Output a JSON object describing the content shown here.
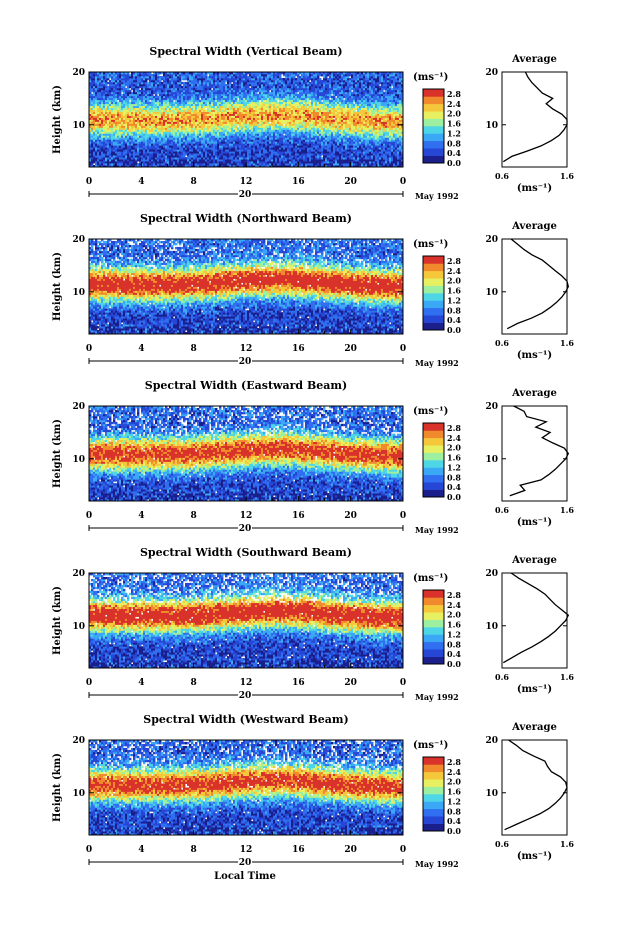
{
  "figure": {
    "xlabel": "Local Time",
    "ylabel": "Height (km)",
    "unit": "(ms⁻¹)",
    "date_label": "May 1992",
    "day_label": "20",
    "avg_title": "Average",
    "colorbar_ticks": [
      "2.8",
      "2.4",
      "2.0",
      "1.6",
      "1.2",
      "0.8",
      "0.4",
      "0.0"
    ],
    "colors": [
      "#1a1f8c",
      "#2646d6",
      "#2f6ff0",
      "#3aa8f5",
      "#4fd6e6",
      "#9cf0a0",
      "#e6f060",
      "#f5c83c",
      "#f08a2c",
      "#d8322a"
    ]
  },
  "chart_data": [
    {
      "type": "heatmap",
      "title": "Spectral Width (Vertical Beam)",
      "xlabel": "",
      "ylabel": "Height (km)",
      "x_ticks": [
        "0",
        "4",
        "8",
        "12",
        "16",
        "20",
        "0"
      ],
      "xlim": [
        0,
        24
      ],
      "y_ticks": [
        "20",
        "10"
      ],
      "ylim": [
        2,
        20
      ],
      "colorbar": {
        "label": "(ms⁻¹)",
        "range": [
          0.0,
          3.0
        ]
      },
      "field": {
        "core_height_km": 11,
        "core_width": 1.3,
        "upper_level": 0.25,
        "lower_level": 0.2,
        "gap_rate": 0.01,
        "seed": 3
      },
      "average": {
        "title": "Average",
        "x_ticks": [
          "0.6",
          "1.6"
        ],
        "xlim": [
          0.6,
          1.6
        ],
        "y_ticks": [
          "20",
          "10"
        ],
        "ylim": [
          2,
          20
        ],
        "xlabel": "(ms⁻¹)",
        "height": [
          3,
          4,
          5,
          6,
          7,
          8,
          9,
          10,
          11,
          12,
          13,
          14,
          15,
          16,
          17,
          18,
          19,
          20
        ],
        "value": [
          0.62,
          0.75,
          0.98,
          1.2,
          1.36,
          1.48,
          1.55,
          1.6,
          1.6,
          1.52,
          1.38,
          1.28,
          1.38,
          1.22,
          1.14,
          1.06,
          1.0,
          0.96
        ]
      }
    },
    {
      "type": "heatmap",
      "title": "Spectral Width (Northward Beam)",
      "xlabel": "",
      "ylabel": "Height (km)",
      "x_ticks": [
        "0",
        "4",
        "8",
        "12",
        "16",
        "20",
        "0"
      ],
      "xlim": [
        0,
        24
      ],
      "y_ticks": [
        "20",
        "10"
      ],
      "ylim": [
        2,
        20
      ],
      "colorbar": {
        "label": "(ms⁻¹)",
        "range": [
          0.0,
          3.0
        ]
      },
      "field": {
        "core_height_km": 11.5,
        "core_width": 1.7,
        "upper_level": 0.35,
        "lower_level": 0.25,
        "gap_rate": 0.05,
        "seed": 7
      },
      "average": {
        "title": "Average",
        "x_ticks": [
          "0.6",
          "1.6"
        ],
        "xlim": [
          0.6,
          1.6
        ],
        "y_ticks": [
          "20",
          "10"
        ],
        "ylim": [
          2,
          20
        ],
        "xlabel": "(ms⁻¹)",
        "height": [
          3,
          4,
          5,
          6,
          7,
          8,
          9,
          10,
          11,
          12,
          13,
          14,
          15,
          16,
          17,
          18,
          19,
          20
        ],
        "value": [
          0.68,
          0.84,
          1.05,
          1.22,
          1.34,
          1.44,
          1.52,
          1.58,
          1.62,
          1.6,
          1.52,
          1.42,
          1.32,
          1.22,
          1.06,
          0.94,
          0.84,
          0.74
        ]
      }
    },
    {
      "type": "heatmap",
      "title": "Spectral Width (Eastward Beam)",
      "xlabel": "",
      "ylabel": "Height (km)",
      "x_ticks": [
        "0",
        "4",
        "8",
        "12",
        "16",
        "20",
        "0"
      ],
      "xlim": [
        0,
        24
      ],
      "y_ticks": [
        "20",
        "10"
      ],
      "ylim": [
        2,
        20
      ],
      "colorbar": {
        "label": "(ms⁻¹)",
        "range": [
          0.0,
          3.0
        ]
      },
      "field": {
        "core_height_km": 11,
        "core_width": 1.6,
        "upper_level": 0.35,
        "lower_level": 0.28,
        "gap_rate": 0.07,
        "seed": 11
      },
      "average": {
        "title": "Average",
        "x_ticks": [
          "0.6",
          "1.6"
        ],
        "xlim": [
          0.6,
          1.6
        ],
        "y_ticks": [
          "20",
          "10"
        ],
        "ylim": [
          2,
          20
        ],
        "xlabel": "(ms⁻¹)",
        "height": [
          3,
          4,
          5,
          6,
          7,
          8,
          9,
          10,
          11,
          12,
          13,
          14,
          15,
          16,
          17,
          18,
          19,
          20
        ],
        "value": [
          0.72,
          0.95,
          0.88,
          1.2,
          1.32,
          1.42,
          1.5,
          1.58,
          1.62,
          1.56,
          1.38,
          1.22,
          1.34,
          1.12,
          1.28,
          0.98,
          0.94,
          0.78
        ]
      }
    },
    {
      "type": "heatmap",
      "title": "Spectral Width (Southward Beam)",
      "xlabel": "",
      "ylabel": "Height (km)",
      "x_ticks": [
        "0",
        "4",
        "8",
        "12",
        "16",
        "20",
        "0"
      ],
      "xlim": [
        0,
        24
      ],
      "y_ticks": [
        "20",
        "10"
      ],
      "ylim": [
        2,
        20
      ],
      "colorbar": {
        "label": "(ms⁻¹)",
        "range": [
          0.0,
          3.0
        ]
      },
      "field": {
        "core_height_km": 12,
        "core_width": 1.7,
        "upper_level": 0.35,
        "lower_level": 0.25,
        "gap_rate": 0.08,
        "seed": 17
      },
      "average": {
        "title": "Average",
        "x_ticks": [
          "0.6",
          "1.6"
        ],
        "xlim": [
          0.6,
          1.6
        ],
        "y_ticks": [
          "20",
          "10"
        ],
        "ylim": [
          2,
          20
        ],
        "xlabel": "(ms⁻¹)",
        "height": [
          3,
          4,
          5,
          6,
          7,
          8,
          9,
          10,
          11,
          12,
          13,
          14,
          15,
          16,
          17,
          18,
          19,
          20
        ],
        "value": [
          0.62,
          0.76,
          0.9,
          1.06,
          1.2,
          1.32,
          1.42,
          1.5,
          1.58,
          1.62,
          1.52,
          1.42,
          1.34,
          1.26,
          1.14,
          1.0,
          0.86,
          0.74
        ]
      }
    },
    {
      "type": "heatmap",
      "title": "Spectral Width (Westward Beam)",
      "xlabel": "Local Time",
      "ylabel": "Height (km)",
      "x_ticks": [
        "0",
        "4",
        "8",
        "12",
        "16",
        "20",
        "0"
      ],
      "xlim": [
        0,
        24
      ],
      "y_ticks": [
        "20",
        "10"
      ],
      "ylim": [
        2,
        20
      ],
      "colorbar": {
        "label": "(ms⁻¹)",
        "range": [
          0.0,
          3.0
        ]
      },
      "field": {
        "core_height_km": 11.5,
        "core_width": 1.6,
        "upper_level": 0.3,
        "lower_level": 0.25,
        "gap_rate": 0.07,
        "seed": 23
      },
      "average": {
        "title": "Average",
        "x_ticks": [
          "0.6",
          "1.6"
        ],
        "xlim": [
          0.6,
          1.6
        ],
        "y_ticks": [
          "20",
          "10"
        ],
        "ylim": [
          2,
          20
        ],
        "xlabel": "(ms⁻¹)",
        "height": [
          3,
          4,
          5,
          6,
          7,
          8,
          9,
          10,
          11,
          12,
          13,
          14,
          15,
          16,
          17,
          18,
          19,
          20
        ],
        "value": [
          0.64,
          0.82,
          1.0,
          1.18,
          1.32,
          1.42,
          1.5,
          1.56,
          1.6,
          1.58,
          1.5,
          1.36,
          1.3,
          1.26,
          1.08,
          0.92,
          0.82,
          0.7
        ]
      }
    }
  ]
}
